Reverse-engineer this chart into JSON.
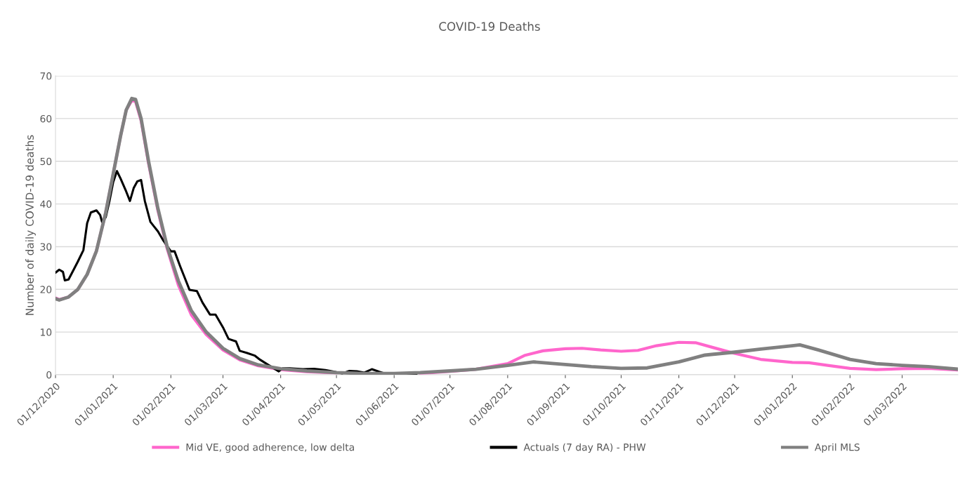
{
  "chart_data": {
    "type": "line",
    "title": "COVID-19 Deaths",
    "ylabel": "Number of daily COVID-19 deaths",
    "xlim": [
      "2020-12-01",
      "2022-03-31"
    ],
    "xticks": [
      {
        "value": "2020-12-01",
        "label": "01/12/2020"
      },
      {
        "value": "2021-01-01",
        "label": "01/01/2021"
      },
      {
        "value": "2021-02-01",
        "label": "01/02/2021"
      },
      {
        "value": "2021-03-01",
        "label": "01/03/2021"
      },
      {
        "value": "2021-04-01",
        "label": "01/04/2021"
      },
      {
        "value": "2021-05-01",
        "label": "01/05/2021"
      },
      {
        "value": "2021-06-01",
        "label": "01/06/2021"
      },
      {
        "value": "2021-07-01",
        "label": "01/07/2021"
      },
      {
        "value": "2021-08-01",
        "label": "01/08/2021"
      },
      {
        "value": "2021-09-01",
        "label": "01/09/2021"
      },
      {
        "value": "2021-10-01",
        "label": "01/10/2021"
      },
      {
        "value": "2021-11-01",
        "label": "01/11/2021"
      },
      {
        "value": "2021-12-01",
        "label": "01/12/2021"
      },
      {
        "value": "2022-01-01",
        "label": "01/01/2022"
      },
      {
        "value": "2022-02-01",
        "label": "01/02/2022"
      },
      {
        "value": "2022-03-01",
        "label": "01/03/2022"
      }
    ],
    "ylim": [
      0,
      70
    ],
    "yticks": [
      0,
      10,
      20,
      30,
      40,
      50,
      60,
      70
    ],
    "grid": "y",
    "legend": "bottom",
    "marker": "none",
    "line_style": "solid",
    "series": [
      {
        "name": "Mid VE, good adherence, low delta",
        "color": "#ff66cc",
        "x": [
          "2020-12-01",
          "2020-12-03",
          "2020-12-08",
          "2020-12-13",
          "2020-12-18",
          "2020-12-23",
          "2020-12-28",
          "2021-01-01",
          "2021-01-05",
          "2021-01-08",
          "2021-01-11",
          "2021-01-13",
          "2021-01-16",
          "2021-01-20",
          "2021-01-25",
          "2021-01-30",
          "2021-02-05",
          "2021-02-12",
          "2021-02-20",
          "2021-03-01",
          "2021-03-10",
          "2021-03-20",
          "2021-04-01",
          "2021-04-15",
          "2021-05-01",
          "2021-05-15",
          "2021-06-01",
          "2021-06-15",
          "2021-07-01",
          "2021-07-15",
          "2021-08-01",
          "2021-08-10",
          "2021-08-20",
          "2021-09-01",
          "2021-09-10",
          "2021-09-20",
          "2021-10-01",
          "2021-10-10",
          "2021-10-20",
          "2021-11-01",
          "2021-11-10",
          "2021-11-20",
          "2021-12-01",
          "2021-12-15",
          "2022-01-01",
          "2022-01-10",
          "2022-01-20",
          "2022-02-01",
          "2022-02-15",
          "2022-03-01",
          "2022-03-15",
          "2022-03-31"
        ],
        "values": [
          18,
          17.6,
          18.2,
          20,
          23.5,
          29,
          38,
          47,
          56,
          62,
          64.2,
          64,
          59.5,
          49.5,
          38.5,
          29.5,
          21,
          14,
          9.4,
          5.8,
          3.5,
          2.1,
          1.2,
          0.7,
          0.4,
          null,
          null,
          0.3,
          0.8,
          1.3,
          2.6,
          4.5,
          5.6,
          6.1,
          6.2,
          5.8,
          5.5,
          5.7,
          6.8,
          7.6,
          7.5,
          6.3,
          5.0,
          3.6,
          2.9,
          2.8,
          2.2,
          1.5,
          1.2,
          1.4,
          1.5,
          1.1
        ]
      },
      {
        "name": "Actuals (7 day RA) - PHW",
        "color": "#000000",
        "x": [
          "2020-12-01",
          "2020-12-03",
          "2020-12-05",
          "2020-12-06",
          "2020-12-08",
          "2020-12-11",
          "2020-12-13",
          "2020-12-16",
          "2020-12-18",
          "2020-12-20",
          "2020-12-23",
          "2020-12-25",
          "2020-12-26",
          "2020-12-28",
          "2020-12-30",
          "2021-01-01",
          "2021-01-03",
          "2021-01-05",
          "2021-01-08",
          "2021-01-10",
          "2021-01-12",
          "2021-01-14",
          "2021-01-16",
          "2021-01-18",
          "2021-01-21",
          "2021-01-23",
          "2021-01-25",
          "2021-01-28",
          "2021-02-01",
          "2021-02-03",
          "2021-02-06",
          "2021-02-08",
          "2021-02-11",
          "2021-02-15",
          "2021-02-18",
          "2021-02-22",
          "2021-02-25",
          "2021-03-01",
          "2021-03-04",
          "2021-03-08",
          "2021-03-10",
          "2021-03-14",
          "2021-03-18",
          "2021-03-21",
          "2021-03-25",
          "2021-03-31",
          "2021-04-02",
          "2021-04-06",
          "2021-04-13",
          "2021-04-19",
          "2021-04-25",
          "2021-04-30",
          "2021-05-04",
          "2021-05-08",
          "2021-05-12",
          "2021-05-16",
          "2021-05-20",
          "2021-05-24",
          "2021-05-27",
          "2021-06-01",
          "2021-06-08",
          "2021-06-13"
        ],
        "values": [
          23.9,
          24.6,
          24.1,
          22.1,
          22.3,
          24.8,
          26.5,
          29.2,
          35.5,
          38.0,
          38.5,
          37.4,
          35.8,
          36.9,
          40.7,
          45.1,
          47.7,
          45.9,
          42.9,
          40.7,
          43.7,
          45.3,
          45.6,
          40.7,
          35.8,
          34.7,
          33.6,
          31.4,
          28.9,
          28.9,
          25.4,
          23.2,
          19.9,
          19.6,
          16.9,
          14.1,
          14.1,
          11.1,
          8.4,
          7.8,
          5.6,
          5.1,
          4.5,
          3.5,
          2.4,
          0.8,
          1.5,
          1.5,
          1.3,
          1.4,
          1.1,
          0.7,
          0.3,
          0.9,
          0.8,
          0.5,
          1.3,
          0.7,
          0.3,
          0.0,
          0.1,
          0.2
        ]
      },
      {
        "name": "April MLS",
        "color": "#808080",
        "x": [
          "2020-12-01",
          "2020-12-03",
          "2020-12-08",
          "2020-12-13",
          "2020-12-18",
          "2020-12-23",
          "2020-12-28",
          "2021-01-01",
          "2021-01-05",
          "2021-01-08",
          "2021-01-11",
          "2021-01-13",
          "2021-01-16",
          "2021-01-20",
          "2021-01-25",
          "2021-01-30",
          "2021-02-05",
          "2021-02-12",
          "2021-02-20",
          "2021-03-01",
          "2021-03-10",
          "2021-03-20",
          "2021-04-01",
          "2021-04-15",
          "2021-05-01",
          "2021-05-15",
          "2021-06-01",
          "2021-06-15",
          "2021-07-01",
          "2021-07-15",
          "2021-08-01",
          "2021-08-15",
          "2021-09-01",
          "2021-09-15",
          "2021-10-01",
          "2021-10-15",
          "2021-11-01",
          "2021-11-15",
          "2021-12-01",
          "2021-12-15",
          "2022-01-01",
          "2022-01-05",
          "2022-01-15",
          "2022-02-01",
          "2022-02-15",
          "2022-03-01",
          "2022-03-15",
          "2022-03-31"
        ],
        "values": [
          17.8,
          17.5,
          18.2,
          20,
          23.5,
          29,
          38,
          47,
          56,
          62,
          64.7,
          64.5,
          60,
          50,
          39,
          30,
          22,
          15,
          10,
          6.2,
          3.8,
          2.3,
          1.4,
          0.9,
          0.5,
          0.3,
          0.3,
          0.5,
          0.9,
          1.3,
          2.2,
          3.0,
          2.4,
          1.9,
          1.5,
          1.6,
          3.0,
          4.6,
          5.3,
          6.0,
          6.8,
          7.0,
          5.8,
          3.6,
          2.6,
          2.2,
          1.9,
          1.3
        ]
      }
    ]
  }
}
